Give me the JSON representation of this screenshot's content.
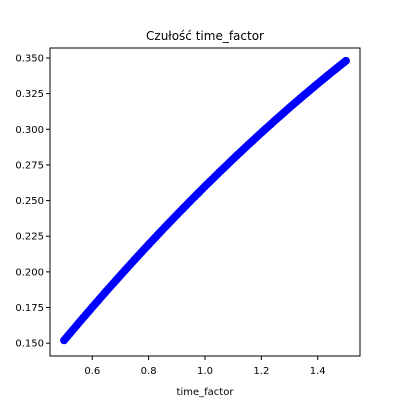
{
  "chart_data": {
    "type": "scatter",
    "title": "Czułość time_factor",
    "xlabel": "time_factor",
    "ylabel": "",
    "xlim": [
      0.45,
      1.55
    ],
    "ylim": [
      0.141,
      0.357
    ],
    "xticks": [
      0.6,
      0.8,
      1.0,
      1.2,
      1.4
    ],
    "xtick_labels": [
      "0.6",
      "0.8",
      "1.0",
      "1.2",
      "1.4"
    ],
    "yticks": [
      0.15,
      0.175,
      0.2,
      0.225,
      0.25,
      0.275,
      0.3,
      0.325,
      0.35
    ],
    "ytick_labels": [
      "0.150",
      "0.175",
      "0.200",
      "0.225",
      "0.250",
      "0.275",
      "0.300",
      "0.325",
      "0.350"
    ],
    "grid": false,
    "series": [
      {
        "color": "#0000ff",
        "x": [
          0.5,
          0.55,
          0.6,
          0.65,
          0.7,
          0.75,
          0.8,
          0.85,
          0.9,
          0.95,
          1.0,
          1.05,
          1.1,
          1.15,
          1.2,
          1.25,
          1.3,
          1.35,
          1.4,
          1.45,
          1.5
        ],
        "y": [
          0.152,
          0.1637,
          0.1752,
          0.1865,
          0.1976,
          0.2085,
          0.2192,
          0.2297,
          0.24,
          0.2501,
          0.26,
          0.2697,
          0.2792,
          0.2885,
          0.2976,
          0.3065,
          0.3152,
          0.3237,
          0.332,
          0.3401,
          0.348
        ]
      }
    ]
  }
}
